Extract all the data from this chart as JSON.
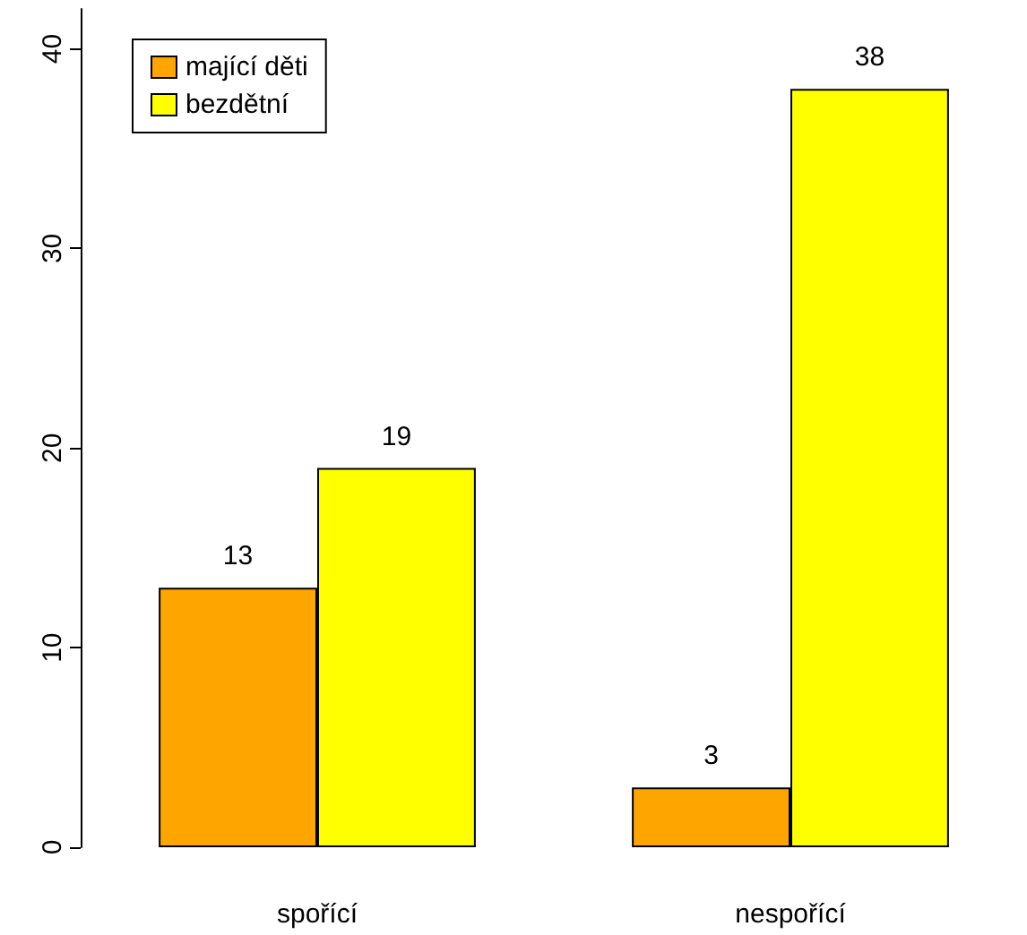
{
  "chart_data": {
    "type": "bar",
    "categories": [
      "spořící",
      "nespořící"
    ],
    "series": [
      {
        "name": "mající děti",
        "color": "#ffa500",
        "values": [
          13,
          3
        ]
      },
      {
        "name": "bezdětní",
        "color": "#ffff00",
        "values": [
          19,
          38
        ]
      }
    ],
    "ylim": [
      0,
      42
    ],
    "yticks": [
      0,
      10,
      20,
      30,
      40
    ],
    "data_labels": true,
    "grid": false,
    "legend": "top left"
  }
}
